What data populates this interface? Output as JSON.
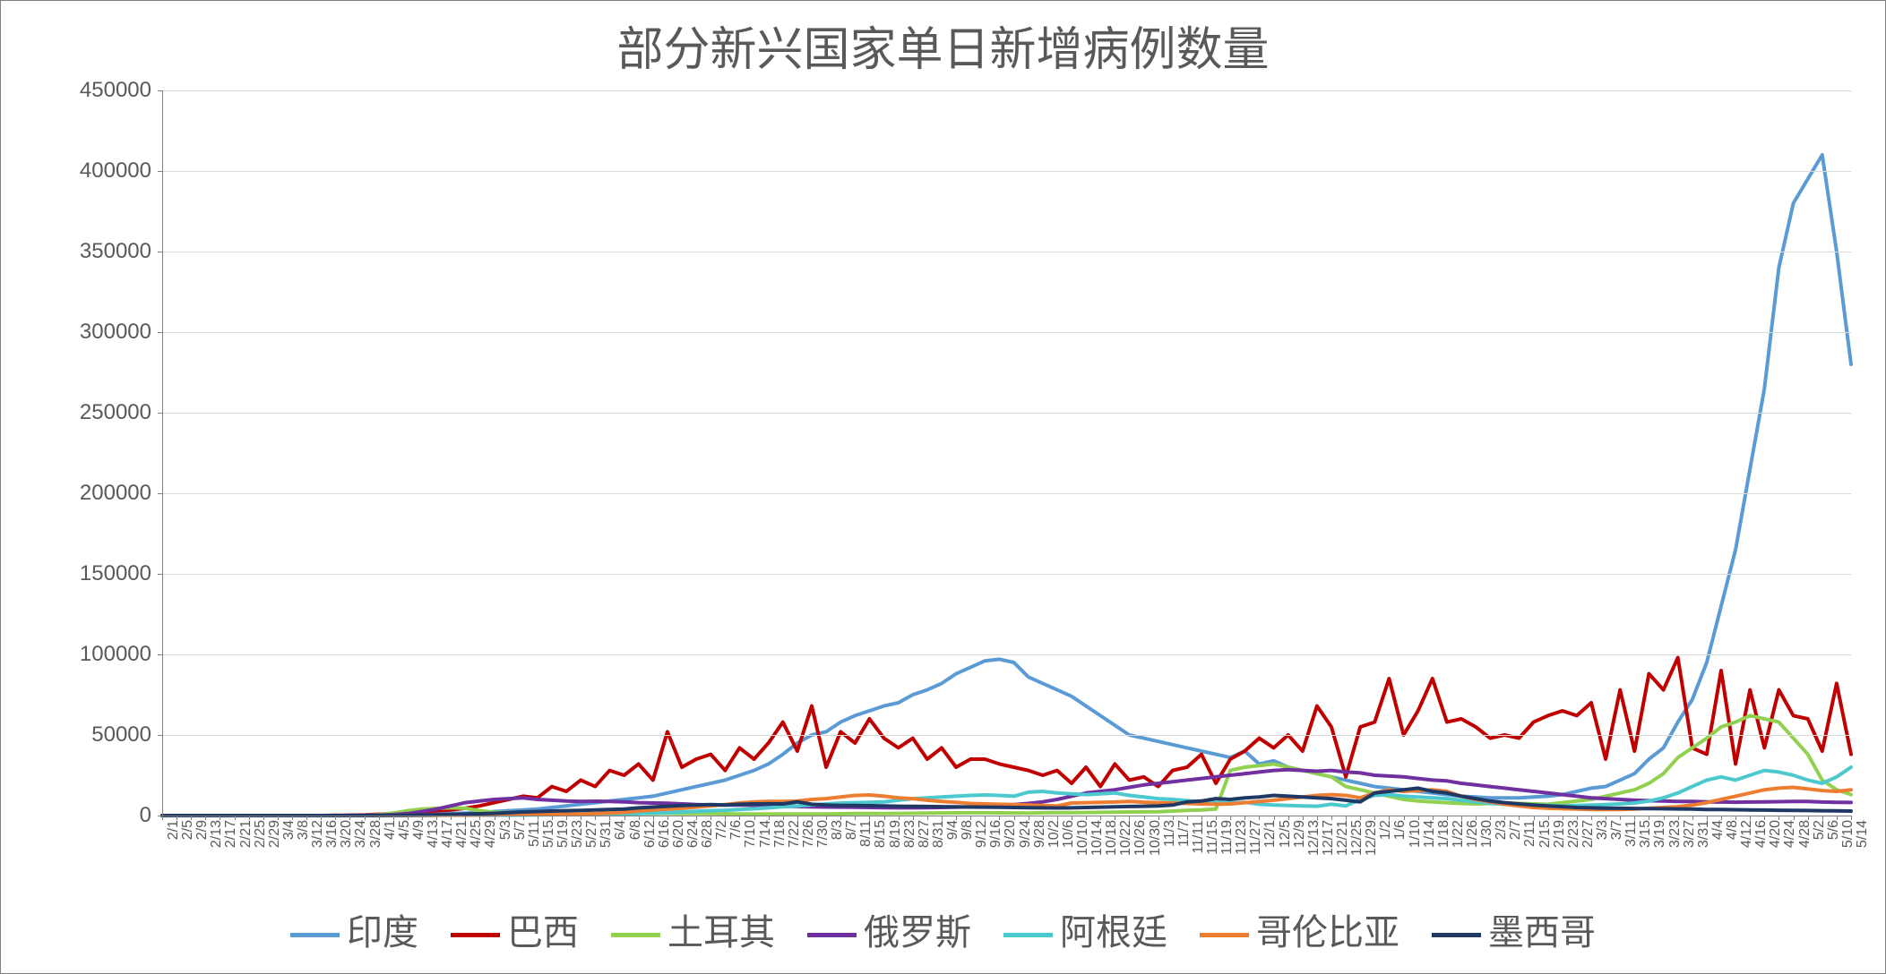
{
  "chart": {
    "type": "line",
    "title": "部分新兴国家单日新增病例数量",
    "title_fontsize": 52,
    "title_color": "#595959",
    "background_color": "#ffffff",
    "grid_color": "#d9d9d9",
    "axis_color": "#808080",
    "axis_label_color": "#595959",
    "axis_label_fontsize": 24,
    "x_tick_fontsize": 16,
    "line_width": 4,
    "ylim": [
      0,
      450000
    ],
    "ytick_step": 50000,
    "y_ticks": [
      "0",
      "50000",
      "100000",
      "150000",
      "200000",
      "250000",
      "300000",
      "350000",
      "400000",
      "450000"
    ],
    "x_labels": [
      "2/1",
      "2/5",
      "2/9",
      "2/13",
      "2/17",
      "2/21",
      "2/25",
      "2/29",
      "3/4",
      "3/8",
      "3/12",
      "3/16",
      "3/20",
      "3/24",
      "3/28",
      "4/1",
      "4/5",
      "4/9",
      "4/13",
      "4/17",
      "4/21",
      "4/25",
      "4/29",
      "5/3",
      "5/7",
      "5/11",
      "5/15",
      "5/19",
      "5/23",
      "5/27",
      "5/31",
      "6/4",
      "6/8",
      "6/12",
      "6/16",
      "6/20",
      "6/24",
      "6/28",
      "7/2",
      "7/6",
      "7/10",
      "7/14",
      "7/18",
      "7/22",
      "7/26",
      "7/30",
      "8/3",
      "8/7",
      "8/11",
      "8/15",
      "8/19",
      "8/23",
      "8/27",
      "8/31",
      "9/4",
      "9/8",
      "9/12",
      "9/16",
      "9/20",
      "9/24",
      "9/28",
      "10/2",
      "10/6",
      "10/10",
      "10/14",
      "10/18",
      "10/22",
      "10/26",
      "10/30",
      "11/3",
      "11/7",
      "11/11",
      "11/15",
      "11/19",
      "11/23",
      "11/27",
      "12/1",
      "12/5",
      "12/9",
      "12/13",
      "12/17",
      "12/21",
      "12/25",
      "12/29",
      "1/2",
      "1/6",
      "1/10",
      "1/14",
      "1/18",
      "1/22",
      "1/26",
      "1/30",
      "2/3",
      "2/7",
      "2/11",
      "2/15",
      "2/19",
      "2/23",
      "2/27",
      "3/3",
      "3/7",
      "3/11",
      "3/15",
      "3/19",
      "3/23",
      "3/27",
      "3/31",
      "4/4",
      "4/8",
      "4/12",
      "4/16",
      "4/20",
      "4/24",
      "4/28",
      "5/2",
      "5/6",
      "5/10",
      "5/14"
    ],
    "series": [
      {
        "name": "印度",
        "color": "#5b9bd5",
        "values": [
          0,
          0,
          0,
          0,
          0,
          0,
          0,
          0,
          0,
          0,
          0,
          0,
          0,
          0,
          0,
          100,
          200,
          500,
          800,
          1000,
          1200,
          1500,
          1800,
          2500,
          3000,
          3500,
          4000,
          5000,
          6000,
          7000,
          8000,
          9000,
          10000,
          11000,
          12000,
          14000,
          16000,
          18000,
          20000,
          22000,
          25000,
          28000,
          32000,
          38000,
          45000,
          50000,
          52000,
          58000,
          62000,
          65000,
          68000,
          70000,
          75000,
          78000,
          82000,
          88000,
          92000,
          96000,
          97000,
          95000,
          86000,
          82000,
          78000,
          74000,
          68000,
          62000,
          56000,
          50000,
          48000,
          46000,
          44000,
          42000,
          40000,
          38000,
          36000,
          40000,
          32000,
          34000,
          30000,
          28000,
          26000,
          24000,
          22000,
          20000,
          18000,
          17000,
          16000,
          15000,
          14000,
          13000,
          12000,
          11500,
          11000,
          11000,
          11000,
          11500,
          12000,
          13000,
          15000,
          17000,
          18000,
          22000,
          26000,
          35000,
          42000,
          58000,
          72000,
          95000,
          130000,
          165000,
          215000,
          265000,
          340000,
          380000,
          395000,
          410000,
          350000,
          280000
        ]
      },
      {
        "name": "巴西",
        "color": "#c00000",
        "values": [
          0,
          0,
          0,
          0,
          0,
          0,
          0,
          0,
          0,
          0,
          0,
          0,
          100,
          200,
          400,
          800,
          1200,
          1800,
          2500,
          3000,
          3500,
          4500,
          6000,
          8000,
          10000,
          12000,
          11000,
          18000,
          15000,
          22000,
          18000,
          28000,
          25000,
          32000,
          22000,
          52000,
          30000,
          35000,
          38000,
          28000,
          42000,
          35000,
          45000,
          58000,
          40000,
          68000,
          30000,
          52000,
          45000,
          60000,
          48000,
          42000,
          48000,
          35000,
          42000,
          30000,
          35000,
          35000,
          32000,
          30000,
          28000,
          25000,
          28000,
          20000,
          30000,
          18000,
          32000,
          22000,
          24000,
          18000,
          28000,
          30000,
          38000,
          20000,
          35000,
          40000,
          48000,
          42000,
          50000,
          40000,
          68000,
          55000,
          24000,
          55000,
          58000,
          85000,
          50000,
          65000,
          85000,
          58000,
          60000,
          55000,
          48000,
          50000,
          48000,
          58000,
          62000,
          65000,
          62000,
          70000,
          35000,
          78000,
          40000,
          88000,
          78000,
          98000,
          42000,
          38000,
          90000,
          32000,
          78000,
          42000,
          78000,
          62000,
          60000,
          40000,
          82000,
          38000
        ]
      },
      {
        "name": "土耳其",
        "color": "#92d050",
        "values": [
          0,
          0,
          0,
          0,
          0,
          0,
          0,
          0,
          0,
          0,
          0,
          0,
          0,
          0,
          100,
          500,
          1500,
          3000,
          4000,
          4500,
          4800,
          4500,
          3000,
          2000,
          1800,
          1500,
          1200,
          1000,
          1000,
          900,
          900,
          900,
          1000,
          1200,
          1300,
          1400,
          1300,
          1300,
          1200,
          1100,
          1000,
          950,
          920,
          930,
          950,
          960,
          1000,
          1100,
          1200,
          1250,
          1300,
          1350,
          1400,
          1500,
          1600,
          1650,
          1700,
          1700,
          1650,
          1600,
          1550,
          1700,
          1800,
          1850,
          1900,
          2000,
          2100,
          2200,
          2300,
          2400,
          2800,
          3200,
          3500,
          4000,
          28000,
          30000,
          31000,
          32000,
          30000,
          28000,
          26000,
          24000,
          18000,
          16000,
          14000,
          12000,
          10000,
          9000,
          8500,
          8000,
          7500,
          7200,
          7500,
          7800,
          7500,
          7200,
          7000,
          8000,
          9000,
          10000,
          12000,
          14000,
          16000,
          20000,
          26000,
          36000,
          42000,
          48000,
          55000,
          58000,
          62000,
          60000,
          58000,
          48000,
          38000,
          22000,
          16000,
          13000
        ]
      },
      {
        "name": "俄罗斯",
        "color": "#7030a0",
        "values": [
          0,
          0,
          0,
          0,
          0,
          0,
          0,
          0,
          0,
          0,
          0,
          0,
          0,
          50,
          100,
          300,
          600,
          1200,
          2500,
          4000,
          6000,
          8000,
          9000,
          10000,
          10500,
          11000,
          10000,
          9500,
          9000,
          8800,
          8900,
          8700,
          8500,
          8000,
          7800,
          7600,
          7200,
          6800,
          6600,
          6500,
          6500,
          6400,
          6200,
          5800,
          5600,
          5400,
          5300,
          5200,
          5100,
          5000,
          4900,
          4800,
          4800,
          4900,
          5000,
          5200,
          5400,
          5800,
          6200,
          6800,
          7500,
          8500,
          10000,
          12000,
          14000,
          15000,
          16000,
          17500,
          19000,
          20000,
          21000,
          22000,
          23000,
          24000,
          25000,
          26000,
          27000,
          28000,
          28500,
          28000,
          27500,
          28000,
          27000,
          26500,
          25000,
          24500,
          24000,
          23000,
          22000,
          21500,
          20000,
          19000,
          18000,
          17000,
          16000,
          15000,
          14000,
          13000,
          12000,
          11000,
          10500,
          10000,
          9500,
          9200,
          9000,
          8800,
          8700,
          8500,
          8400,
          8300,
          8400,
          8500,
          8600,
          8800,
          8800,
          8400,
          8200,
          8100
        ]
      },
      {
        "name": "阿根廷",
        "color": "#4bc9cf",
        "values": [
          0,
          0,
          0,
          0,
          0,
          0,
          0,
          0,
          0,
          0,
          0,
          0,
          0,
          0,
          50,
          100,
          100,
          120,
          150,
          150,
          200,
          200,
          250,
          250,
          300,
          350,
          400,
          500,
          600,
          700,
          800,
          900,
          1000,
          1200,
          1500,
          1800,
          2200,
          2600,
          3000,
          3300,
          3800,
          4200,
          4800,
          5500,
          6000,
          6500,
          7200,
          7700,
          8000,
          8200,
          8500,
          9500,
          10500,
          11000,
          11500,
          12000,
          12500,
          12800,
          12500,
          12000,
          14500,
          15000,
          14000,
          13500,
          13000,
          13500,
          14000,
          12500,
          11500,
          10500,
          10000,
          9200,
          8500,
          8000,
          7800,
          8200,
          7000,
          6500,
          6200,
          6000,
          5800,
          7000,
          6000,
          10000,
          12500,
          13000,
          12000,
          11500,
          11000,
          10500,
          9500,
          8500,
          7500,
          7000,
          6800,
          6500,
          6200,
          6000,
          6200,
          6500,
          6800,
          7200,
          7800,
          9000,
          11000,
          14000,
          18000,
          22000,
          24000,
          22000,
          25000,
          28000,
          27000,
          25000,
          22000,
          20000,
          24000,
          30000
        ]
      },
      {
        "name": "哥伦比亚",
        "color": "#ed7d31",
        "values": [
          0,
          0,
          0,
          0,
          0,
          0,
          0,
          0,
          0,
          0,
          0,
          0,
          0,
          0,
          20,
          50,
          80,
          100,
          150,
          200,
          250,
          300,
          350,
          450,
          550,
          600,
          650,
          700,
          800,
          900,
          1200,
          1500,
          2000,
          2800,
          3500,
          4000,
          4500,
          5200,
          6000,
          6800,
          7800,
          8500,
          8800,
          8700,
          9000,
          10000,
          10500,
          11500,
          12500,
          12800,
          12000,
          11000,
          10500,
          9500,
          8800,
          8200,
          7500,
          7200,
          7000,
          6800,
          6500,
          6200,
          6000,
          7800,
          8000,
          8200,
          8400,
          8800,
          8300,
          8000,
          7800,
          7500,
          7200,
          7000,
          7200,
          8000,
          8800,
          9500,
          10500,
          11500,
          12500,
          13000,
          12500,
          11000,
          14000,
          16000,
          15000,
          15500,
          16000,
          15000,
          12000,
          10000,
          8500,
          7000,
          6000,
          5000,
          4500,
          4200,
          4000,
          3800,
          3700,
          3700,
          4000,
          4500,
          5000,
          5500,
          6500,
          8000,
          10000,
          12000,
          14000,
          16000,
          17000,
          17500,
          16500,
          15500,
          15000,
          16000
        ]
      },
      {
        "name": "墨西哥",
        "color": "#1f3864",
        "values": [
          0,
          0,
          0,
          0,
          0,
          0,
          0,
          0,
          0,
          0,
          0,
          0,
          0,
          0,
          20,
          50,
          100,
          200,
          350,
          500,
          700,
          900,
          1100,
          1400,
          1800,
          2200,
          2500,
          2800,
          3000,
          3200,
          3500,
          3700,
          4000,
          4800,
          5300,
          5800,
          6200,
          6500,
          6800,
          6500,
          7000,
          7200,
          7300,
          7200,
          8500,
          7000,
          6500,
          6300,
          6200,
          6100,
          6000,
          5800,
          5700,
          5600,
          5500,
          5400,
          5300,
          5200,
          5100,
          5000,
          4900,
          4800,
          4700,
          4800,
          5000,
          5200,
          5400,
          5600,
          5800,
          6000,
          6500,
          8500,
          9000,
          10500,
          10000,
          11000,
          11500,
          12500,
          12000,
          11500,
          11000,
          10500,
          9500,
          8500,
          14000,
          15000,
          16000,
          17000,
          15000,
          14000,
          12000,
          10500,
          9000,
          8000,
          7200,
          6500,
          6000,
          5500,
          5000,
          4800,
          4600,
          4500,
          4400,
          4300,
          4200,
          4100,
          4000,
          3800,
          3700,
          3600,
          3500,
          3400,
          3300,
          3200,
          3100,
          3000,
          2900,
          2800
        ]
      }
    ],
    "legend": {
      "position": "bottom",
      "fontsize": 40,
      "text_color": "#595959"
    }
  }
}
